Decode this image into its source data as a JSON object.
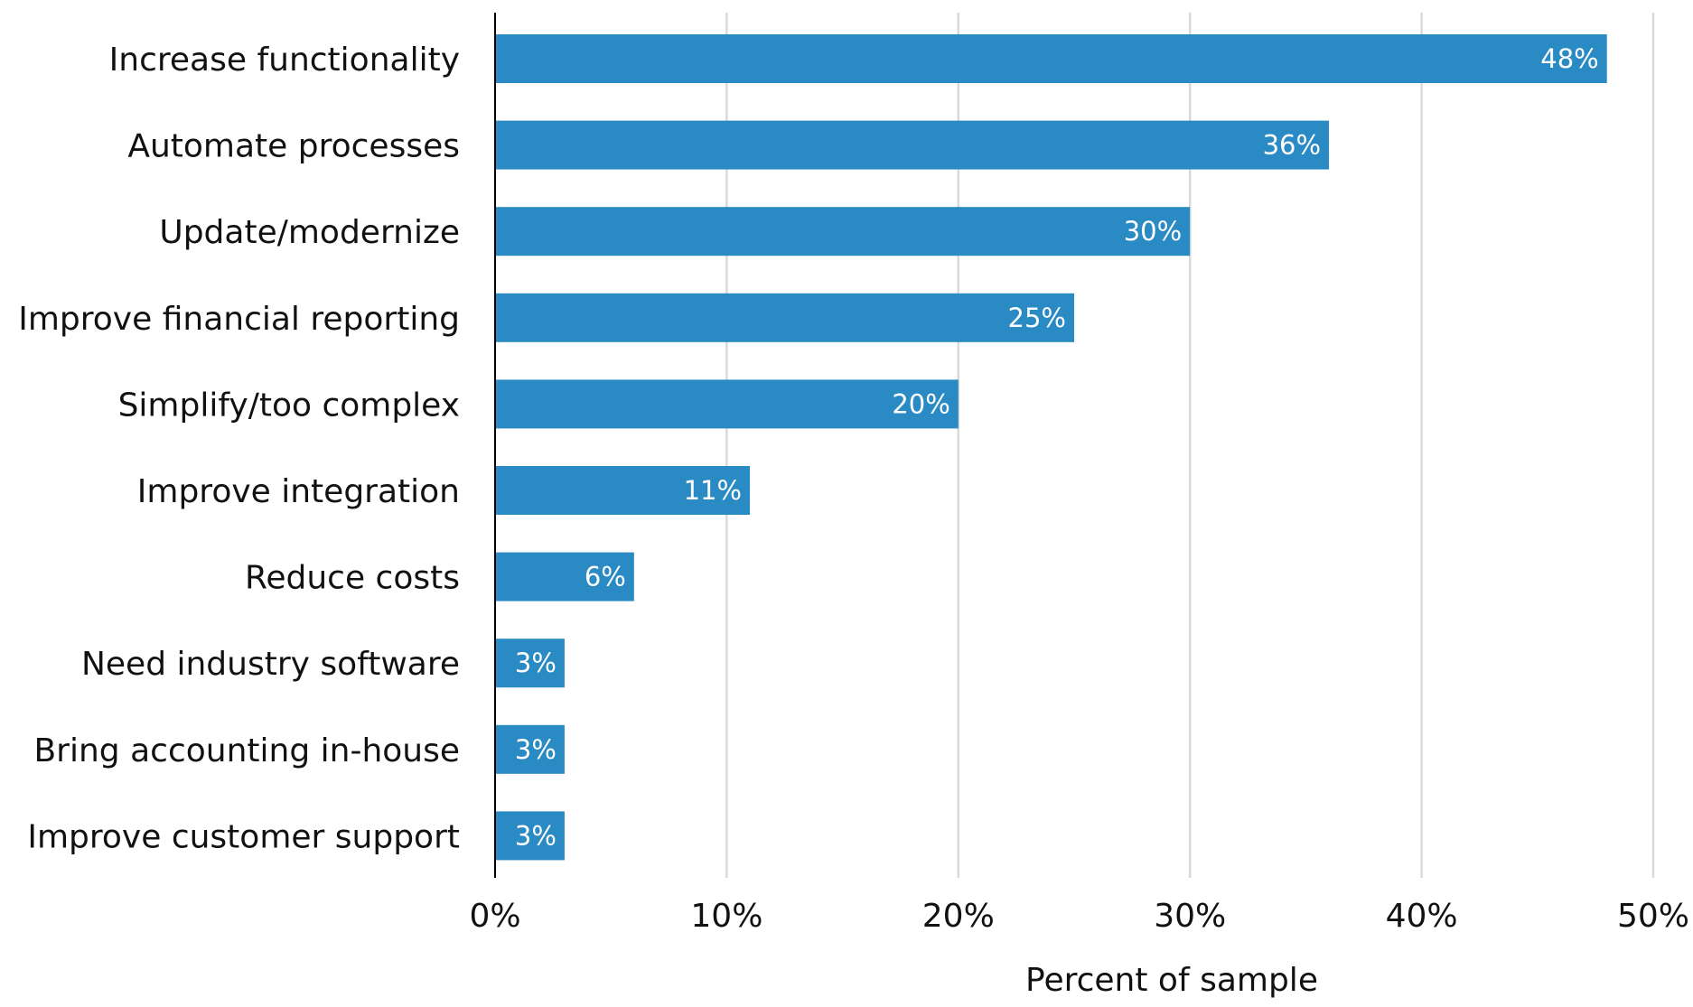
{
  "chart_data": {
    "type": "bar",
    "orientation": "horizontal",
    "categories": [
      "Increase functionality",
      "Automate processes",
      "Update/modernize",
      "Improve financial reporting",
      "Simplify/too complex",
      "Improve integration",
      "Reduce costs",
      "Need industry software",
      "Bring accounting in-house",
      "Improve customer support"
    ],
    "values": [
      48,
      36,
      30,
      25,
      20,
      11,
      6,
      3,
      3,
      3
    ],
    "value_labels": [
      "48%",
      "36%",
      "30%",
      "25%",
      "20%",
      "11%",
      "6%",
      "3%",
      "3%",
      "3%"
    ],
    "title": "",
    "xlabel": "Percent of sample",
    "ylabel": "",
    "xlim": [
      0,
      50
    ],
    "xticks": [
      0,
      10,
      20,
      30,
      40,
      50
    ],
    "xtick_labels": [
      "0%",
      "10%",
      "20%",
      "30%",
      "40%",
      "50%"
    ],
    "grid": "vertical",
    "legend": "none",
    "colors": {
      "bar": "#2a8ac4",
      "grid": "#d9d9d9",
      "axis": "#000000",
      "value_label": "#ffffff"
    }
  }
}
